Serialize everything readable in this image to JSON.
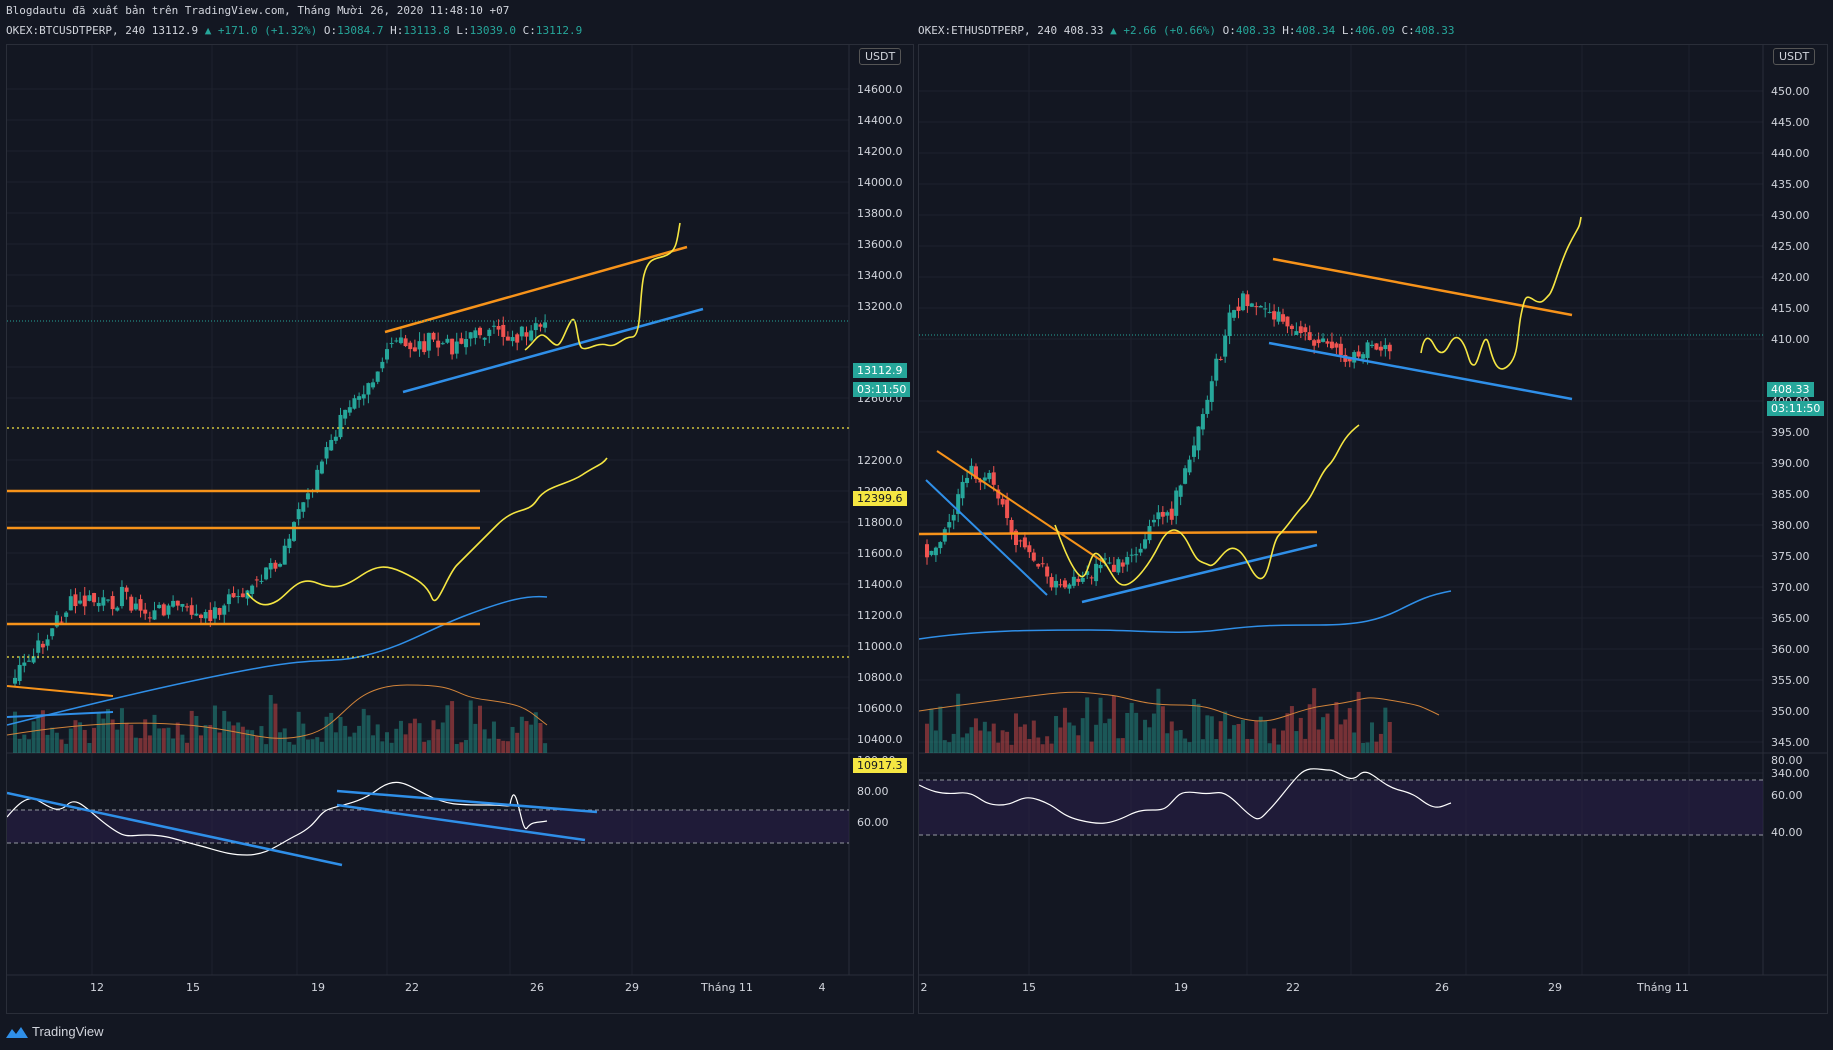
{
  "header_text": "Blogdautu đã xuất bản trên TradingView.com, Tháng Mười 26, 2020 11:48:10 +07",
  "left": {
    "symbol": "OKEX:BTCUSDTPERP, 240",
    "last": "13112.9",
    "change": "▲ +171.0 (+1.32%)",
    "o_label": "O:",
    "o": "13084.7",
    "h_label": "H:",
    "h": "13113.8",
    "l_label": "L:",
    "l": "13039.0",
    "c_label": "C:",
    "c": "13112.9",
    "currency": "USDT",
    "price_labels": [
      "14600.0",
      "14400.0",
      "14200.0",
      "14000.0",
      "13800.0",
      "13600.0",
      "13400.0",
      "13200.0",
      "12800.0",
      "12600.0",
      "12200.0",
      "12000.0",
      "11800.0",
      "11600.0",
      "11400.0",
      "11200.0",
      "11000.0",
      "10800.0",
      "10600.0",
      "10400.0"
    ],
    "price_tag": "13112.9",
    "countdown": "03:11:50",
    "level_tag_1": "12399.6",
    "level_tag_2": "10917.3",
    "rsi_labels": [
      "100.00",
      "80.00",
      "60.00"
    ],
    "time_labels": [
      "12",
      "15",
      "19",
      "22",
      "26",
      "29",
      "Tháng 11",
      "4"
    ]
  },
  "right": {
    "symbol": "OKEX:ETHUSDTPERP, 240",
    "last": "408.33",
    "change": "▲ +2.66 (+0.66%)",
    "o_label": "O:",
    "o": "408.33",
    "h_label": "H:",
    "h": "408.34",
    "l_label": "L:",
    "l": "406.09",
    "c_label": "C:",
    "c": "408.33",
    "currency": "USDT",
    "price_labels": [
      "450.00",
      "445.00",
      "440.00",
      "435.00",
      "430.00",
      "425.00",
      "420.00",
      "415.00",
      "410.00",
      "400.00",
      "395.00",
      "390.00",
      "385.00",
      "380.00",
      "375.00",
      "370.00",
      "365.00",
      "360.00",
      "355.00",
      "350.00",
      "345.00",
      "340.00"
    ],
    "price_tag": "408.33",
    "countdown": "03:11:50",
    "rsi_labels": [
      "80.00",
      "60.00",
      "40.00"
    ],
    "time_labels": [
      "2",
      "15",
      "19",
      "22",
      "26",
      "29",
      "Tháng 11"
    ]
  },
  "brand": "TradingView",
  "colors": {
    "up": "#26a69a",
    "down": "#ef5350",
    "orange": "#f7931a",
    "blue": "#2f8fe8",
    "yellow": "#f5e642",
    "bg": "#131722",
    "grid": "#1e222d"
  }
}
